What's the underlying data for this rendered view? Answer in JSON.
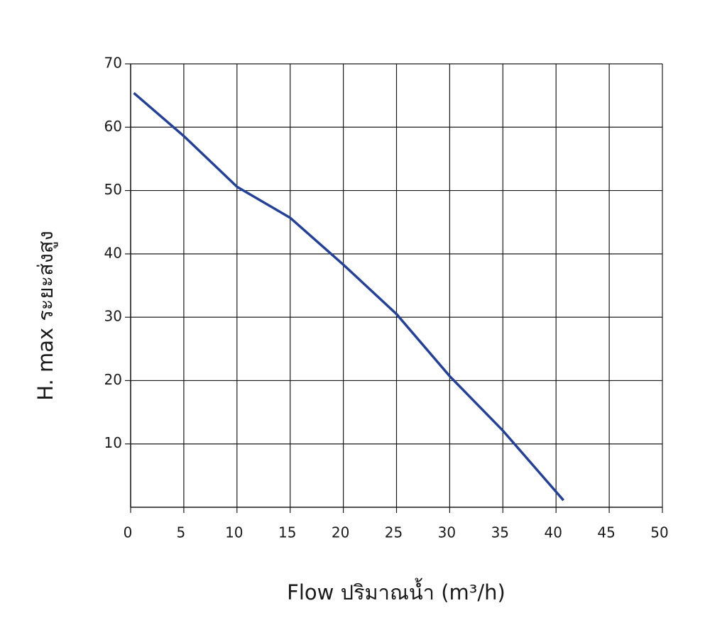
{
  "chart_data": {
    "type": "line",
    "x_label": "Flow  ปริมาณน้ำ (m³/h)",
    "y_label": "H. max  ระยะส่งสูง",
    "series": [
      {
        "color": "#23409a",
        "x": [
          0.3,
          5,
          10,
          15,
          20,
          25,
          30,
          35,
          40.7
        ],
        "values": [
          65.4,
          58.6,
          50.6,
          45.7,
          38.3,
          30.5,
          20.7,
          12.1,
          1.1
        ]
      }
    ],
    "xlim": [
      0,
      50
    ],
    "xticks": [
      0,
      5,
      10,
      15,
      20,
      25,
      30,
      35,
      40,
      45,
      50
    ],
    "ylim": [
      0,
      70
    ],
    "yticks": [
      10,
      20,
      30,
      40,
      50,
      60,
      70
    ],
    "grid": true
  }
}
